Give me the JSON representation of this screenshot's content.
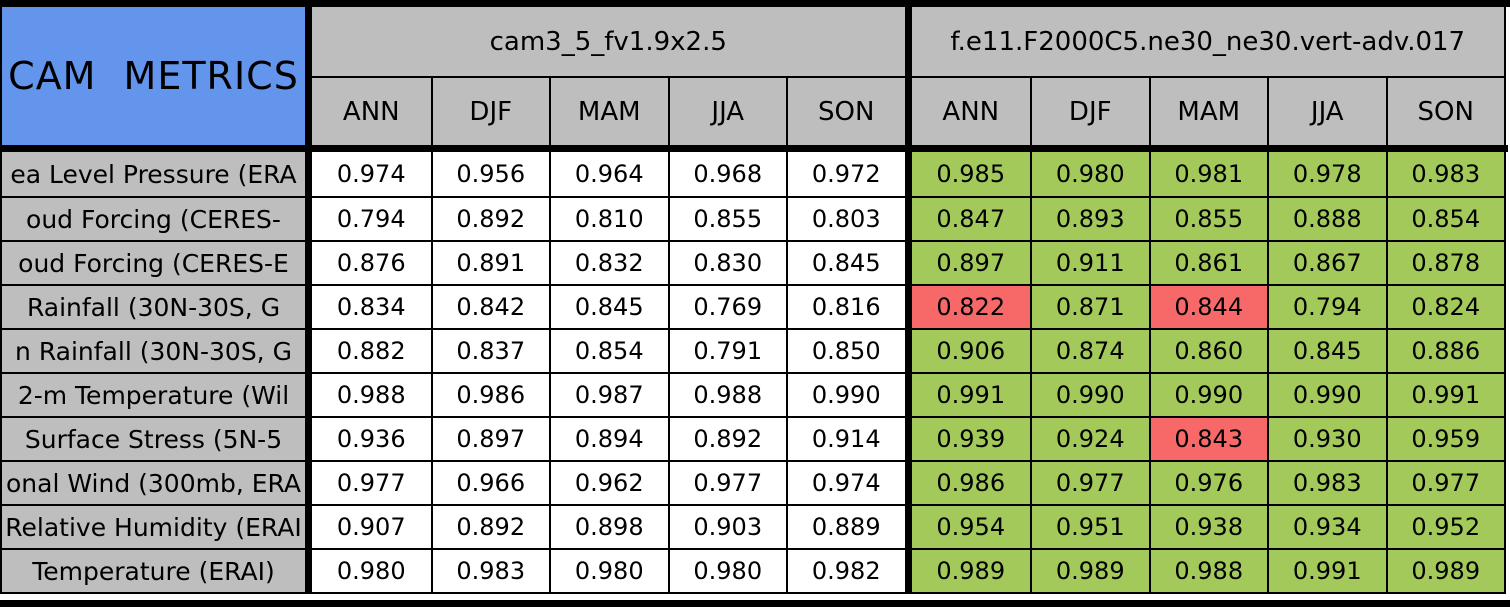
{
  "table": {
    "corner_label": "CAM METRICS",
    "groups": [
      {
        "title": "cam3_5_fv1.9x2.5"
      },
      {
        "title": "f.e11.F2000C5.ne30_ne30.vert-adv.017"
      }
    ],
    "seasons": [
      "ANN",
      "DJF",
      "MAM",
      "JJA",
      "SON"
    ],
    "colors": {
      "header_blue": "#6495ED",
      "header_gray": "#BEBEBE",
      "better_green": "#A2C95A",
      "worse_red": "#F76969",
      "border_black": "#000000"
    },
    "legend_semantics": {
      "good": "test case better than reference",
      "bad": "test case worse than reference"
    },
    "rows": [
      {
        "label": "ea Level Pressure (ERA",
        "ref": [
          "0.974",
          "0.956",
          "0.964",
          "0.968",
          "0.972"
        ],
        "test": [
          "0.985",
          "0.980",
          "0.981",
          "0.978",
          "0.983"
        ],
        "flags": [
          "good",
          "good",
          "good",
          "good",
          "good"
        ]
      },
      {
        "label": "oud Forcing (CERES-",
        "ref": [
          "0.794",
          "0.892",
          "0.810",
          "0.855",
          "0.803"
        ],
        "test": [
          "0.847",
          "0.893",
          "0.855",
          "0.888",
          "0.854"
        ],
        "flags": [
          "good",
          "good",
          "good",
          "good",
          "good"
        ]
      },
      {
        "label": "oud Forcing (CERES-E",
        "ref": [
          "0.876",
          "0.891",
          "0.832",
          "0.830",
          "0.845"
        ],
        "test": [
          "0.897",
          "0.911",
          "0.861",
          "0.867",
          "0.878"
        ],
        "flags": [
          "good",
          "good",
          "good",
          "good",
          "good"
        ]
      },
      {
        "label": "Rainfall (30N-30S, G",
        "ref": [
          "0.834",
          "0.842",
          "0.845",
          "0.769",
          "0.816"
        ],
        "test": [
          "0.822",
          "0.871",
          "0.844",
          "0.794",
          "0.824"
        ],
        "flags": [
          "bad",
          "good",
          "bad",
          "good",
          "good"
        ]
      },
      {
        "label": "n Rainfall (30N-30S, G",
        "ref": [
          "0.882",
          "0.837",
          "0.854",
          "0.791",
          "0.850"
        ],
        "test": [
          "0.906",
          "0.874",
          "0.860",
          "0.845",
          "0.886"
        ],
        "flags": [
          "good",
          "good",
          "good",
          "good",
          "good"
        ]
      },
      {
        "label": "2-m Temperature (Wil",
        "ref": [
          "0.988",
          "0.986",
          "0.987",
          "0.988",
          "0.990"
        ],
        "test": [
          "0.991",
          "0.990",
          "0.990",
          "0.990",
          "0.991"
        ],
        "flags": [
          "good",
          "good",
          "good",
          "good",
          "good"
        ]
      },
      {
        "label": "Surface Stress (5N-5",
        "ref": [
          "0.936",
          "0.897",
          "0.894",
          "0.892",
          "0.914"
        ],
        "test": [
          "0.939",
          "0.924",
          "0.843",
          "0.930",
          "0.959"
        ],
        "flags": [
          "good",
          "good",
          "bad",
          "good",
          "good"
        ]
      },
      {
        "label": "onal Wind (300mb, ERA",
        "ref": [
          "0.977",
          "0.966",
          "0.962",
          "0.977",
          "0.974"
        ],
        "test": [
          "0.986",
          "0.977",
          "0.976",
          "0.983",
          "0.977"
        ],
        "flags": [
          "good",
          "good",
          "good",
          "good",
          "good"
        ]
      },
      {
        "label": "Relative Humidity (ERAI",
        "ref": [
          "0.907",
          "0.892",
          "0.898",
          "0.903",
          "0.889"
        ],
        "test": [
          "0.954",
          "0.951",
          "0.938",
          "0.934",
          "0.952"
        ],
        "flags": [
          "good",
          "good",
          "good",
          "good",
          "good"
        ]
      },
      {
        "label": "Temperature (ERAI)",
        "ref": [
          "0.980",
          "0.983",
          "0.980",
          "0.980",
          "0.982"
        ],
        "test": [
          "0.989",
          "0.989",
          "0.988",
          "0.991",
          "0.989"
        ],
        "flags": [
          "good",
          "good",
          "good",
          "good",
          "good"
        ]
      }
    ]
  }
}
